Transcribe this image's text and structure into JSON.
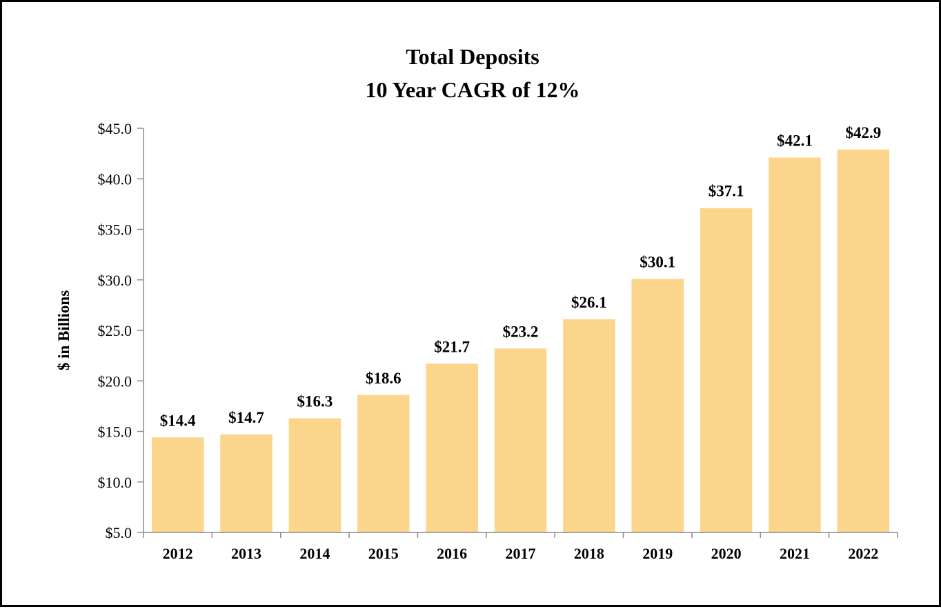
{
  "chart_data": {
    "type": "bar",
    "title": "Total Deposits",
    "subtitle": "10 Year CAGR of 12%",
    "xlabel": "",
    "ylabel": "$ in Billions",
    "categories": [
      "2012",
      "2013",
      "2014",
      "2015",
      "2016",
      "2017",
      "2018",
      "2019",
      "2020",
      "2021",
      "2022"
    ],
    "values": [
      14.4,
      14.7,
      16.3,
      18.6,
      21.7,
      23.2,
      26.1,
      30.1,
      37.1,
      42.1,
      42.9
    ],
    "data_labels": [
      "$14.4",
      "$14.7",
      "$16.3",
      "$18.6",
      "$21.7",
      "$23.2",
      "$26.1",
      "$30.1",
      "$37.1",
      "$42.1",
      "$42.9"
    ],
    "ylim": [
      5,
      45
    ],
    "yticks": [
      5,
      10,
      15,
      20,
      25,
      30,
      35,
      40,
      45
    ],
    "ytick_labels": [
      "$5.0",
      "$10.0",
      "$15.0",
      "$20.0",
      "$25.0",
      "$30.0",
      "$35.0",
      "$40.0",
      "$45.0"
    ],
    "grid": false,
    "legend": "none",
    "bar_color": "#FBD58C"
  }
}
